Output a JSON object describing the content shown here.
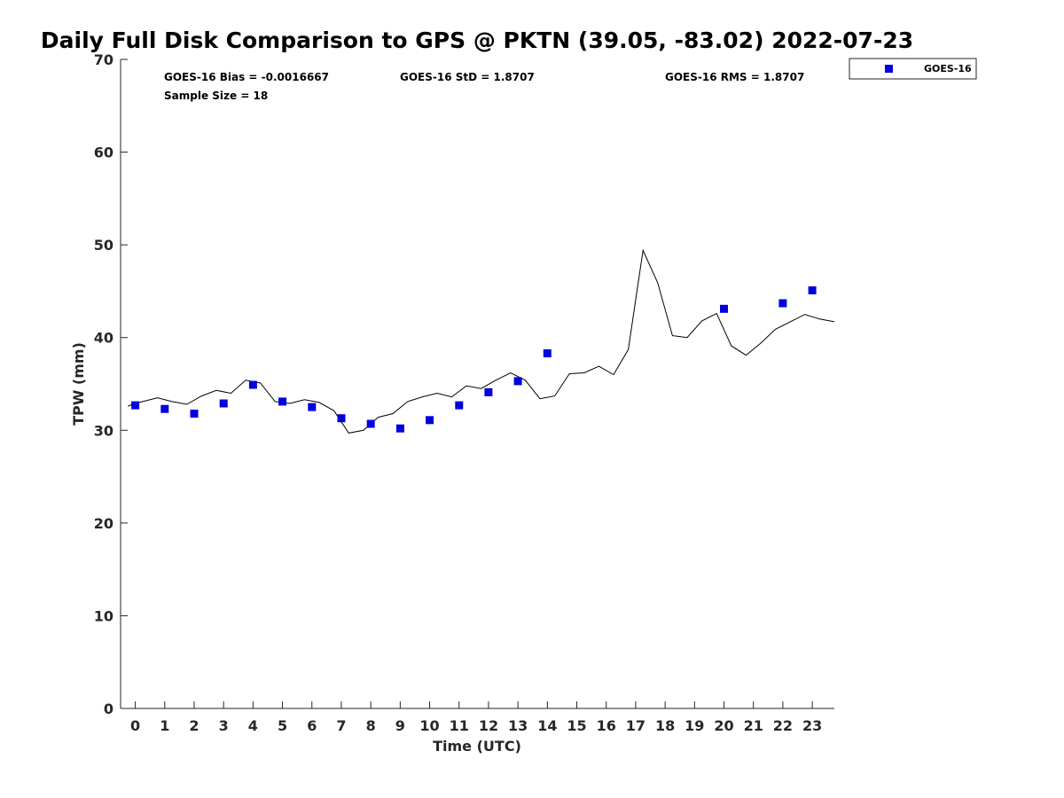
{
  "chart_data": {
    "type": "scatter",
    "title": "Daily Full Disk Comparison to GPS @ PKTN (39.05, -83.02) 2022-07-23",
    "xlabel": "Time (UTC)",
    "ylabel": "TPW (mm)",
    "xlim": [
      -0.5,
      23.75
    ],
    "ylim": [
      0,
      70
    ],
    "x_ticks": [
      0,
      1,
      2,
      3,
      4,
      5,
      6,
      7,
      8,
      9,
      10,
      11,
      12,
      13,
      14,
      15,
      16,
      17,
      18,
      19,
      20,
      21,
      22,
      23
    ],
    "y_ticks": [
      0,
      10,
      20,
      30,
      40,
      50,
      60,
      70
    ],
    "grid": false,
    "legend_position": "top-right",
    "stats": {
      "bias": "GOES-16 Bias = -0.0016667",
      "std": "GOES-16 StD = 1.8707",
      "rms": "GOES-16 RMS = 1.8707",
      "sample_size": "Sample Size = 18"
    },
    "series": [
      {
        "name": "GOES-16",
        "kind": "scatter",
        "color": "#0000dd",
        "marker": "square",
        "x": [
          0,
          1,
          2,
          3,
          4,
          5,
          6,
          7,
          8,
          9,
          10,
          11,
          12,
          13,
          14,
          20,
          22,
          23
        ],
        "y": [
          32.7,
          32.3,
          31.8,
          32.9,
          34.9,
          33.1,
          32.5,
          31.3,
          30.7,
          30.2,
          31.1,
          32.7,
          34.1,
          35.3,
          38.3,
          43.1,
          43.7,
          45.1
        ]
      },
      {
        "kind": "line",
        "color": "#000000",
        "x": [
          -0.25,
          0.0,
          0.25,
          0.75,
          1.25,
          1.75,
          2.25,
          2.75,
          3.25,
          3.75,
          4.25,
          4.75,
          5.25,
          5.75,
          6.25,
          6.75,
          7.25,
          7.75,
          8.25,
          8.75,
          9.25,
          9.75,
          10.25,
          10.75,
          11.25,
          11.75,
          12.25,
          12.75,
          13.25,
          13.75,
          14.25,
          14.75,
          15.25,
          15.75,
          16.25,
          16.75,
          17.25,
          17.75,
          18.25,
          18.75,
          19.25,
          19.75,
          20.25,
          20.75,
          21.25,
          21.75,
          22.25,
          22.75,
          23.25,
          23.75
        ],
        "y": [
          32.6,
          32.9,
          33.1,
          33.5,
          33.1,
          32.8,
          33.7,
          34.3,
          34.0,
          35.4,
          35.1,
          33.1,
          32.9,
          33.3,
          33.0,
          32.1,
          29.7,
          30.0,
          31.4,
          31.8,
          33.1,
          33.6,
          34.0,
          33.6,
          34.8,
          34.5,
          35.4,
          36.2,
          35.4,
          33.4,
          33.7,
          36.1,
          36.2,
          36.9,
          36.0,
          38.7,
          49.4,
          45.9,
          40.2,
          40.0,
          41.8,
          42.6,
          39.1,
          38.1,
          39.4,
          40.9,
          41.7,
          42.5,
          42.0,
          41.7
        ]
      }
    ]
  }
}
